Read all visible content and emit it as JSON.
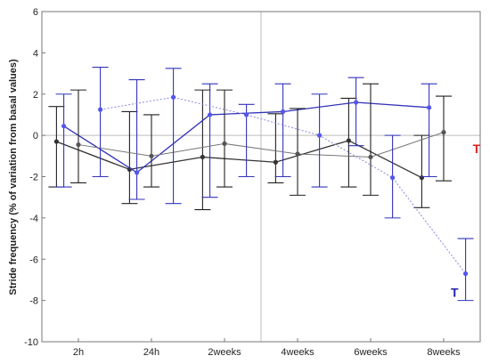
{
  "chart_data": {
    "type": "line",
    "title": "",
    "xlabel": "",
    "ylabel": "Stride frequency (% of variation from basal values)",
    "ylim": [
      -10,
      6
    ],
    "yticks": [
      -10,
      -8,
      -6,
      -4,
      -2,
      0,
      2,
      4,
      6
    ],
    "xlim": [
      0,
      6
    ],
    "categories": [
      "2h",
      "24h",
      "2weeks",
      "4weeks",
      "6weeks",
      "8weeks"
    ],
    "category_positions": [
      0.5,
      1.5,
      2.5,
      3.5,
      4.5,
      5.5
    ],
    "grid": {
      "vertical_at": 3,
      "horizontal_at": 0
    },
    "colors": {
      "blue": "#3333bb",
      "blue_marker": "#5555ee",
      "dark": "#333333",
      "gray": "#777777",
      "light_blue": "#8888dd",
      "red": "#dd2222",
      "frame": "#777777",
      "grid": "#bbbbbb"
    },
    "series": [
      {
        "line": "#333333",
        "marker": "#333333",
        "whisker": "#222222",
        "width": 1.3,
        "dash": "",
        "x": [
          0.2,
          1.2,
          2.2,
          3.2,
          4.2,
          5.2
        ],
        "y": [
          -0.3,
          -1.65,
          -1.05,
          -1.3,
          -0.25,
          -2.05
        ],
        "lo": [
          -2.5,
          -3.3,
          -3.6,
          -2.3,
          -2.5,
          -3.5
        ],
        "hi": [
          1.4,
          1.15,
          2.2,
          1.05,
          1.8,
          0.0
        ]
      },
      {
        "line": "#3333bb",
        "marker": "#5555ee",
        "whisker": "#3333bb",
        "width": 1.3,
        "dash": "",
        "x": [
          0.3,
          1.3,
          2.3,
          3.3,
          4.3,
          5.3
        ],
        "y": [
          0.45,
          -1.8,
          1.0,
          1.15,
          1.6,
          1.35
        ],
        "lo": [
          -2.5,
          -3.1,
          -3.0,
          -2.0,
          -0.5,
          -2.0
        ],
        "hi": [
          2.0,
          2.7,
          2.5,
          2.5,
          2.8,
          2.5
        ]
      },
      {
        "line": "#777777",
        "marker": "#555555",
        "whisker": "#222222",
        "width": 1.0,
        "dash": "",
        "x": [
          0.5,
          1.5,
          2.5,
          3.5,
          4.5,
          5.5
        ],
        "y": [
          -0.45,
          -1.0,
          -0.4,
          -0.9,
          -1.05,
          0.15
        ],
        "lo": [
          -2.3,
          -2.5,
          -2.5,
          -2.9,
          -2.9,
          -2.2
        ],
        "hi": [
          2.2,
          1.0,
          2.2,
          1.3,
          2.5,
          1.9
        ]
      },
      {
        "line": "#8888dd",
        "marker": "#5555ee",
        "whisker": "#3333bb",
        "width": 1.0,
        "dash": "2,2",
        "x": [
          0.8,
          1.8,
          2.8,
          3.8,
          4.8,
          5.8
        ],
        "y": [
          1.25,
          1.85,
          1.0,
          0.0,
          -2.05,
          -6.7
        ],
        "lo": [
          -2.0,
          -3.3,
          -2.0,
          -2.5,
          -4.0,
          -8.0
        ],
        "hi": [
          3.3,
          3.25,
          1.5,
          2.0,
          0.0,
          -5.0
        ]
      }
    ],
    "annotations": [
      {
        "text": "T",
        "x": 5.95,
        "y": -0.65,
        "color": "#dd2222"
      },
      {
        "text": "T",
        "x": 5.65,
        "y": -7.6,
        "color": "#2222aa"
      }
    ]
  }
}
